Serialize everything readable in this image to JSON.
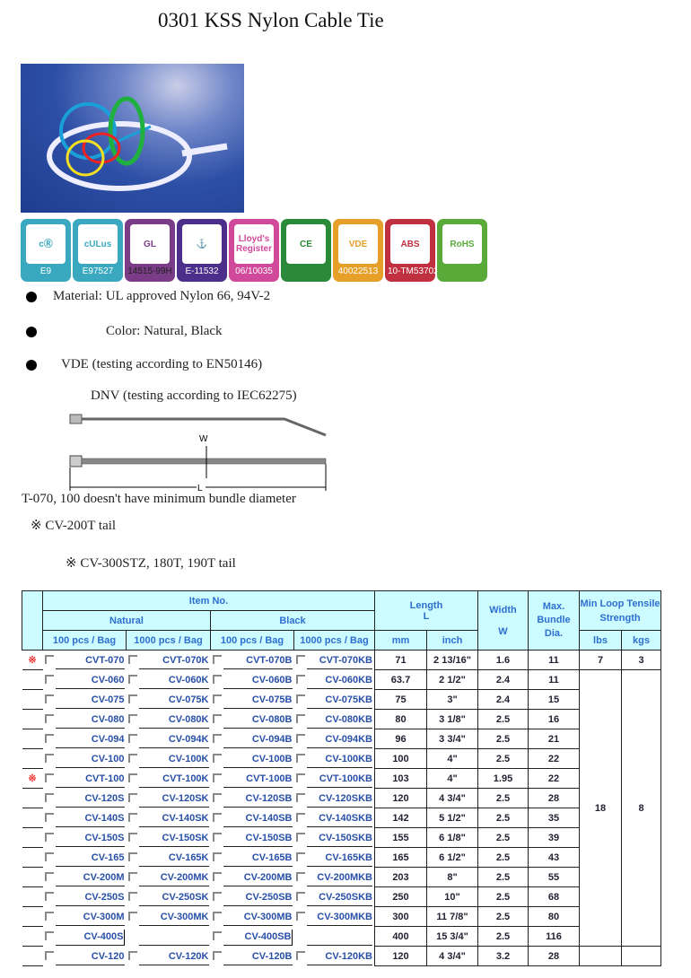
{
  "title": "0301 KSS Nylon Cable Tie",
  "logos": [
    {
      "name": "ul-recognized",
      "code": "E9",
      "color": "#3aa9c0",
      "mark": "cⓇ"
    },
    {
      "name": "cul-us-listed",
      "code": "E97527",
      "color": "#3aa9c0",
      "mark": "cULus"
    },
    {
      "name": "gl",
      "code": "14515-99H",
      "color": "#7a3c86",
      "mark": "GL"
    },
    {
      "name": "dnv",
      "code": "E-11532",
      "color": "#4b2f8a",
      "mark": "⚓"
    },
    {
      "name": "lloyds-register",
      "code": "06/10035",
      "color": "#d0499a",
      "mark": "Lloyd's Register"
    },
    {
      "name": "ce",
      "code": "",
      "color": "#2a8a3a",
      "mark": "CE"
    },
    {
      "name": "vde",
      "code": "40022513",
      "color": "#e6a02a",
      "mark": "VDE"
    },
    {
      "name": "abs",
      "code": "10-TM53702",
      "color": "#c03040",
      "mark": "ABS"
    },
    {
      "name": "rohs",
      "code": "",
      "color": "#5aaa3a",
      "mark": "RoHS"
    }
  ],
  "features": {
    "material": "Material: UL approved Nylon 66, 94V-2",
    "color": "Color: Natural, Black",
    "vde": "VDE (testing according to EN50146)",
    "dnv": "DNV (testing according to IEC62275)"
  },
  "diagram": {
    "w": "W",
    "l": "L"
  },
  "notes": {
    "bundle": "T-070, 100 doesn't have minimum bundle diameter",
    "tail1": "※ CV-200T tail",
    "tail2": "※ CV-300STZ, 180T, 190T tail"
  },
  "table": {
    "item_no": "Item No.",
    "natural": "Natural",
    "black": "Black",
    "pcs100": "100 pcs / Bag",
    "pcs1000": "1000 pcs / Bag",
    "length": "Length",
    "l": "L",
    "mm": "mm",
    "inch": "inch",
    "width": "Width",
    "w": "W",
    "max": "Max. Bundle Dia.",
    "tensile": "Min Loop Tensile Strength",
    "lbs": "lbs",
    "kgs": "kgs",
    "star": "※",
    "rows": [
      {
        "star": true,
        "codes": [
          "CVT-070",
          "CVT-070K",
          "CVT-070B",
          "CVT-070KB"
        ],
        "mm": "71",
        "inch": "2 13/16\"",
        "w": "1.6",
        "max": "11",
        "lbs": "7",
        "kgs": "3"
      },
      {
        "codes": [
          "CV-060",
          "CV-060K",
          "CV-060B",
          "CV-060KB"
        ],
        "mm": "63.7",
        "inch": "2 1/2\"",
        "w": "2.4",
        "max": "11",
        "lbs": "18",
        "kgs": "8"
      },
      {
        "codes": [
          "CV-075",
          "CV-075K",
          "CV-075B",
          "CV-075KB"
        ],
        "mm": "75",
        "inch": "3\"",
        "w": "2.4",
        "max": "15"
      },
      {
        "codes": [
          "CV-080",
          "CV-080K",
          "CV-080B",
          "CV-080KB"
        ],
        "mm": "80",
        "inch": "3 1/8\"",
        "w": "2.5",
        "max": "16"
      },
      {
        "codes": [
          "CV-094",
          "CV-094K",
          "CV-094B",
          "CV-094KB"
        ],
        "mm": "96",
        "inch": "3 3/4\"",
        "w": "2.5",
        "max": "21"
      },
      {
        "codes": [
          "CV-100",
          "CV-100K",
          "CV-100B",
          "CV-100KB"
        ],
        "mm": "100",
        "inch": "4\"",
        "w": "2.5",
        "max": "22"
      },
      {
        "star": true,
        "codes": [
          "CVT-100",
          "CVT-100K",
          "CVT-100B",
          "CVT-100KB"
        ],
        "mm": "103",
        "inch": "4\"",
        "w": "1.95",
        "max": "22"
      },
      {
        "codes": [
          "CV-120S",
          "CV-120SK",
          "CV-120SB",
          "CV-120SKB"
        ],
        "mm": "120",
        "inch": "4 3/4\"",
        "w": "2.5",
        "max": "28"
      },
      {
        "codes": [
          "CV-140S",
          "CV-140SK",
          "CV-140SB",
          "CV-140SKB"
        ],
        "mm": "142",
        "inch": "5 1/2\"",
        "w": "2.5",
        "max": "35"
      },
      {
        "codes": [
          "CV-150S",
          "CV-150SK",
          "CV-150SB",
          "CV-150SKB"
        ],
        "mm": "155",
        "inch": "6 1/8\"",
        "w": "2.5",
        "max": "39"
      },
      {
        "codes": [
          "CV-165",
          "CV-165K",
          "CV-165B",
          "CV-165KB"
        ],
        "mm": "165",
        "inch": "6 1/2\"",
        "w": "2.5",
        "max": "43"
      },
      {
        "codes": [
          "CV-200M",
          "CV-200MK",
          "CV-200MB",
          "CV-200MKB"
        ],
        "mm": "203",
        "inch": "8\"",
        "w": "2.5",
        "max": "55"
      },
      {
        "codes": [
          "CV-250S",
          "CV-250SK",
          "CV-250SB",
          "CV-250SKB"
        ],
        "mm": "250",
        "inch": "10\"",
        "w": "2.5",
        "max": "68"
      },
      {
        "codes": [
          "CV-300M",
          "CV-300MK",
          "CV-300MB",
          "CV-300MKB"
        ],
        "mm": "300",
        "inch": "11 7/8\"",
        "w": "2.5",
        "max": "80"
      },
      {
        "codes": [
          "CV-400S",
          "",
          "CV-400SB",
          ""
        ],
        "mm": "400",
        "inch": "15 3/4\"",
        "w": "2.5",
        "max": "116"
      },
      {
        "codes": [
          "CV-120",
          "CV-120K",
          "CV-120B",
          "CV-120KB"
        ],
        "mm": "120",
        "inch": "4 3/4\"",
        "w": "3.2",
        "max": "28"
      }
    ]
  }
}
